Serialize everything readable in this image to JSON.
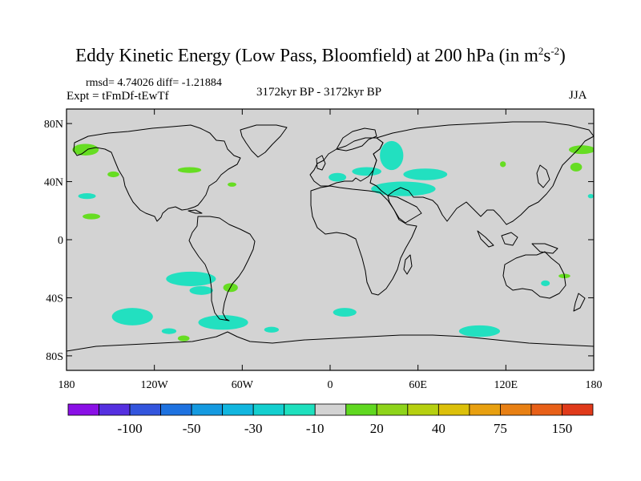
{
  "title_main": "Eddy Kinetic Energy (Low Pass, Bloomfield) at 200 hPa (in m",
  "title_sup1": "2",
  "title_mid": "s",
  "title_sup2": "-2",
  "title_end": ")",
  "stats": "rmsd= 4.74026 diff= -1.21884",
  "expt": "Expt = tFmDf-tEwTf",
  "period": "3172kyr BP - 3172kyr BP",
  "season": "JJA",
  "colors": {
    "land_bg": "#d3d3d3",
    "coast": "#000000",
    "positive": "#66dd22",
    "negative": "#22e0c0"
  },
  "chart_data": {
    "type": "heatmap",
    "xlim": [
      -180,
      180
    ],
    "ylim": [
      -90,
      90
    ],
    "xticks": [
      {
        "value": -180,
        "label": "180"
      },
      {
        "value": -120,
        "label": "120W"
      },
      {
        "value": -60,
        "label": "60W"
      },
      {
        "value": 0,
        "label": "0"
      },
      {
        "value": 60,
        "label": "60E"
      },
      {
        "value": 120,
        "label": "120E"
      },
      {
        "value": 180,
        "label": "180"
      }
    ],
    "yticks": [
      {
        "value": 80,
        "label": "80N"
      },
      {
        "value": 40,
        "label": "40N"
      },
      {
        "value": 0,
        "label": "0"
      },
      {
        "value": -40,
        "label": "40S"
      },
      {
        "value": -80,
        "label": "80S"
      }
    ],
    "anomalies": [
      {
        "sign": "positive",
        "lon": -167,
        "lat": 62,
        "rlon": 9,
        "rlat": 4
      },
      {
        "sign": "positive",
        "lon": 172,
        "lat": 62,
        "rlon": 9,
        "rlat": 3
      },
      {
        "sign": "positive",
        "lon": 168,
        "lat": 50,
        "rlon": 4,
        "rlat": 3
      },
      {
        "sign": "positive",
        "lon": -96,
        "lat": 48,
        "rlon": 8,
        "rlat": 2
      },
      {
        "sign": "positive",
        "lon": -148,
        "lat": 45,
        "rlon": 4,
        "rlat": 2
      },
      {
        "sign": "positive",
        "lon": -67,
        "lat": 38,
        "rlon": 3,
        "rlat": 1.5
      },
      {
        "sign": "positive",
        "lon": -163,
        "lat": 16,
        "rlon": 6,
        "rlat": 2
      },
      {
        "sign": "positive",
        "lon": 118,
        "lat": 52,
        "rlon": 2,
        "rlat": 2
      },
      {
        "sign": "positive",
        "lon": -68,
        "lat": -33,
        "rlon": 5,
        "rlat": 3
      },
      {
        "sign": "positive",
        "lon": -100,
        "lat": -68,
        "rlon": 4,
        "rlat": 2
      },
      {
        "sign": "positive",
        "lon": 160,
        "lat": -25,
        "rlon": 4,
        "rlat": 1.5
      },
      {
        "sign": "negative",
        "lon": 42,
        "lat": 58,
        "rlon": 8,
        "rlat": 10
      },
      {
        "sign": "negative",
        "lon": 5,
        "lat": 43,
        "rlon": 6,
        "rlat": 3
      },
      {
        "sign": "negative",
        "lon": 50,
        "lat": 35,
        "rlon": 22,
        "rlat": 5
      },
      {
        "sign": "negative",
        "lon": 65,
        "lat": 45,
        "rlon": 15,
        "rlat": 4
      },
      {
        "sign": "negative",
        "lon": 25,
        "lat": 47,
        "rlon": 10,
        "rlat": 3
      },
      {
        "sign": "negative",
        "lon": -166,
        "lat": 30,
        "rlon": 6,
        "rlat": 2
      },
      {
        "sign": "negative",
        "lon": -95,
        "lat": -27,
        "rlon": 17,
        "rlat": 5
      },
      {
        "sign": "negative",
        "lon": -88,
        "lat": -35,
        "rlon": 8,
        "rlat": 3
      },
      {
        "sign": "negative",
        "lon": -135,
        "lat": -53,
        "rlon": 14,
        "rlat": 6
      },
      {
        "sign": "negative",
        "lon": -73,
        "lat": -57,
        "rlon": 17,
        "rlat": 5
      },
      {
        "sign": "negative",
        "lon": -40,
        "lat": -62,
        "rlon": 5,
        "rlat": 2
      },
      {
        "sign": "negative",
        "lon": -110,
        "lat": -63,
        "rlon": 5,
        "rlat": 2
      },
      {
        "sign": "negative",
        "lon": 10,
        "lat": -50,
        "rlon": 8,
        "rlat": 3
      },
      {
        "sign": "negative",
        "lon": 102,
        "lat": -63,
        "rlon": 14,
        "rlat": 4
      },
      {
        "sign": "negative",
        "lon": 147,
        "lat": -30,
        "rlon": 3,
        "rlat": 2
      },
      {
        "sign": "negative",
        "lon": 178,
        "lat": 30,
        "rlon": 2,
        "rlat": 1.5
      }
    ],
    "colorbar": {
      "colors": [
        "#8a10e6",
        "#5530e0",
        "#3355dd",
        "#1e72e0",
        "#159ae0",
        "#12b6df",
        "#14cfcf",
        "#1ee0be",
        "#d3d3d3",
        "#60d820",
        "#8ed41a",
        "#b6d010",
        "#dcc00a",
        "#e8a010",
        "#e88014",
        "#e86018",
        "#e03a1a"
      ],
      "labels": [
        "-100",
        "-50",
        "-30",
        "-10",
        "20",
        "40",
        "75",
        "150"
      ]
    }
  }
}
